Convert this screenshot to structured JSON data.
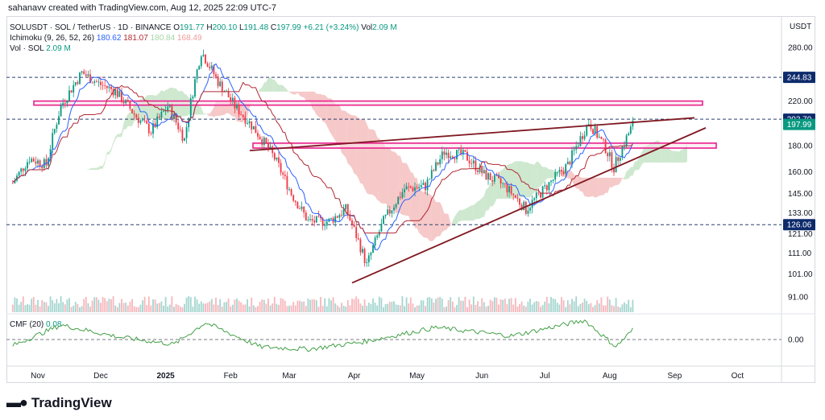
{
  "header": {
    "created_by": "sahanavv created with TradingView.com, Aug 12, 2025 22:09 UTC-7"
  },
  "legend": {
    "symbol": "SOLUSDT · SOL / TetherUS · 1D · BINANCE",
    "o_label": "O",
    "o": "191.77",
    "h_label": "H",
    "h": "200.10",
    "l_label": "L",
    "l": "191.48",
    "c_label": "C",
    "c": "197.99",
    "change": "+6.21 (+3.24%)",
    "vol_label": "Vol",
    "vol": "2.09 M",
    "ichimoku_label": "Ichimoku (9, 26, 52, 26)",
    "ichi_vals": [
      "180.62",
      "181.07",
      "180.84",
      "168.49"
    ],
    "vol_sol_label": "Vol · SOL",
    "vol_sol": "2.09 M"
  },
  "cmf_legend": {
    "label": "CMF (20)",
    "value": "0.08"
  },
  "brand": {
    "name": "TradingView"
  },
  "colors": {
    "up": "#089981",
    "down": "#f23645",
    "tenkan": "#2962ff",
    "kijun": "#b22833",
    "cloud_bull": "#a5d6a7",
    "cloud_bear": "#ef9a9a",
    "zone": "#e91e8c",
    "trend": "#801922",
    "cmf": "#43a047"
  },
  "chart_data": [
    {
      "type": "line",
      "currency": "USDT",
      "x_ticks": [
        "Nov",
        "Dec",
        "2025",
        "Feb",
        "Mar",
        "Apr",
        "May",
        "Jun",
        "Jul",
        "Aug",
        "Sep",
        "Oct"
      ],
      "y_ticks": [
        "280.00",
        "220.00",
        "180.00",
        "160.00",
        "145.00",
        "133.00",
        "121.00",
        "111.00",
        "101.00",
        "91.00"
      ],
      "price_labels": [
        {
          "value": "244.83",
          "kind": "level"
        },
        {
          "value": "202.70",
          "kind": "level"
        },
        {
          "value": "197.99",
          "kind": "last"
        },
        {
          "value": "126.06",
          "kind": "level"
        }
      ],
      "series": [
        {
          "name": "SOLUSDT",
          "values": [
            {
              "x": "2024-10-20",
              "y": 152
            },
            {
              "x": "2024-10-28",
              "y": 170
            },
            {
              "x": "2024-11-05",
              "y": 165
            },
            {
              "x": "2024-11-12",
              "y": 215
            },
            {
              "x": "2024-11-22",
              "y": 250
            },
            {
              "x": "2024-11-30",
              "y": 238
            },
            {
              "x": "2024-12-08",
              "y": 230
            },
            {
              "x": "2024-12-18",
              "y": 205
            },
            {
              "x": "2024-12-25",
              "y": 192
            },
            {
              "x": "2025-01-02",
              "y": 215
            },
            {
              "x": "2025-01-10",
              "y": 185
            },
            {
              "x": "2025-01-18",
              "y": 275
            },
            {
              "x": "2025-01-26",
              "y": 240
            },
            {
              "x": "2025-02-03",
              "y": 215
            },
            {
              "x": "2025-02-12",
              "y": 195
            },
            {
              "x": "2025-02-22",
              "y": 170
            },
            {
              "x": "2025-03-02",
              "y": 145
            },
            {
              "x": "2025-03-10",
              "y": 128
            },
            {
              "x": "2025-03-20",
              "y": 128
            },
            {
              "x": "2025-03-28",
              "y": 135
            },
            {
              "x": "2025-04-07",
              "y": 105
            },
            {
              "x": "2025-04-15",
              "y": 128
            },
            {
              "x": "2025-04-25",
              "y": 148
            },
            {
              "x": "2025-05-05",
              "y": 150
            },
            {
              "x": "2025-05-14",
              "y": 175
            },
            {
              "x": "2025-05-24",
              "y": 172
            },
            {
              "x": "2025-06-02",
              "y": 158
            },
            {
              "x": "2025-06-12",
              "y": 150
            },
            {
              "x": "2025-06-22",
              "y": 135
            },
            {
              "x": "2025-07-02",
              "y": 150
            },
            {
              "x": "2025-07-12",
              "y": 165
            },
            {
              "x": "2025-07-22",
              "y": 200
            },
            {
              "x": "2025-07-30",
              "y": 178
            },
            {
              "x": "2025-08-03",
              "y": 163
            },
            {
              "x": "2025-08-12",
              "y": 198
            }
          ]
        }
      ]
    },
    {
      "type": "line",
      "y_ticks": [
        "0.00"
      ],
      "series": [
        {
          "name": "CMF (20)",
          "values": [
            {
              "x": "2024-10-20",
              "y": -0.05
            },
            {
              "x": "2024-11-12",
              "y": 0.12
            },
            {
              "x": "2024-12-10",
              "y": 0.02
            },
            {
              "x": "2025-01-05",
              "y": -0.04
            },
            {
              "x": "2025-01-20",
              "y": 0.14
            },
            {
              "x": "2025-02-15",
              "y": -0.06
            },
            {
              "x": "2025-03-10",
              "y": -0.08
            },
            {
              "x": "2025-04-05",
              "y": -0.02
            },
            {
              "x": "2025-05-10",
              "y": 0.1
            },
            {
              "x": "2025-06-15",
              "y": 0.03
            },
            {
              "x": "2025-07-20",
              "y": 0.16
            },
            {
              "x": "2025-08-04",
              "y": -0.06
            },
            {
              "x": "2025-08-12",
              "y": 0.08
            }
          ]
        }
      ]
    }
  ]
}
